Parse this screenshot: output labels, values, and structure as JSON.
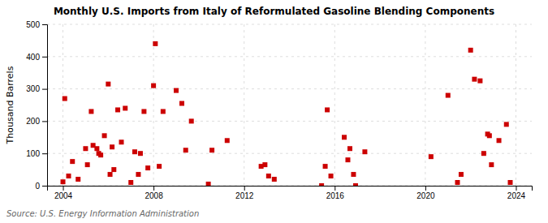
{
  "chart_data": {
    "type": "scatter",
    "title": "Monthly U.S. Imports from Italy of Reformulated Gasoline Blending Components",
    "ylabel": "Thousand Barrels",
    "annotations": [
      "Source: U.S. Energy Information Administration"
    ],
    "color": "#cc0000",
    "marker": "square",
    "grid": true,
    "xlim": [
      2003.3,
      2024.7
    ],
    "ylim": [
      0,
      500
    ],
    "xticks": [
      2004,
      2008,
      2012,
      2016,
      2020,
      2024
    ],
    "yticks": [
      0,
      100,
      200,
      300,
      400,
      500
    ],
    "x": [
      2004.0,
      2004.08,
      2004.25,
      2004.42,
      2004.67,
      2005.0,
      2005.08,
      2005.25,
      2005.33,
      2005.5,
      2005.58,
      2005.67,
      2005.83,
      2006.0,
      2006.08,
      2006.17,
      2006.25,
      2006.42,
      2006.58,
      2006.75,
      2007.0,
      2007.17,
      2007.33,
      2007.42,
      2007.58,
      2007.75,
      2008.0,
      2008.08,
      2008.25,
      2008.42,
      2009.0,
      2009.25,
      2009.42,
      2009.67,
      2010.42,
      2010.58,
      2011.25,
      2012.75,
      2012.92,
      2013.08,
      2013.33,
      2015.42,
      2015.58,
      2015.67,
      2015.83,
      2016.42,
      2016.58,
      2016.67,
      2016.83,
      2016.92,
      2017.33,
      2020.25,
      2021.0,
      2021.42,
      2021.58,
      2022.0,
      2022.17,
      2022.42,
      2022.58,
      2022.75,
      2022.83,
      2022.92,
      2023.25,
      2023.58,
      2023.75
    ],
    "values": [
      12,
      270,
      30,
      75,
      20,
      115,
      65,
      230,
      125,
      115,
      100,
      95,
      155,
      315,
      35,
      120,
      50,
      235,
      135,
      240,
      10,
      105,
      35,
      100,
      230,
      55,
      310,
      440,
      60,
      230,
      295,
      255,
      110,
      200,
      5,
      110,
      140,
      60,
      65,
      30,
      20,
      0,
      60,
      235,
      30,
      150,
      80,
      115,
      35,
      0,
      105,
      90,
      280,
      10,
      35,
      420,
      330,
      325,
      100,
      160,
      155,
      65,
      140,
      190,
      10
    ]
  }
}
